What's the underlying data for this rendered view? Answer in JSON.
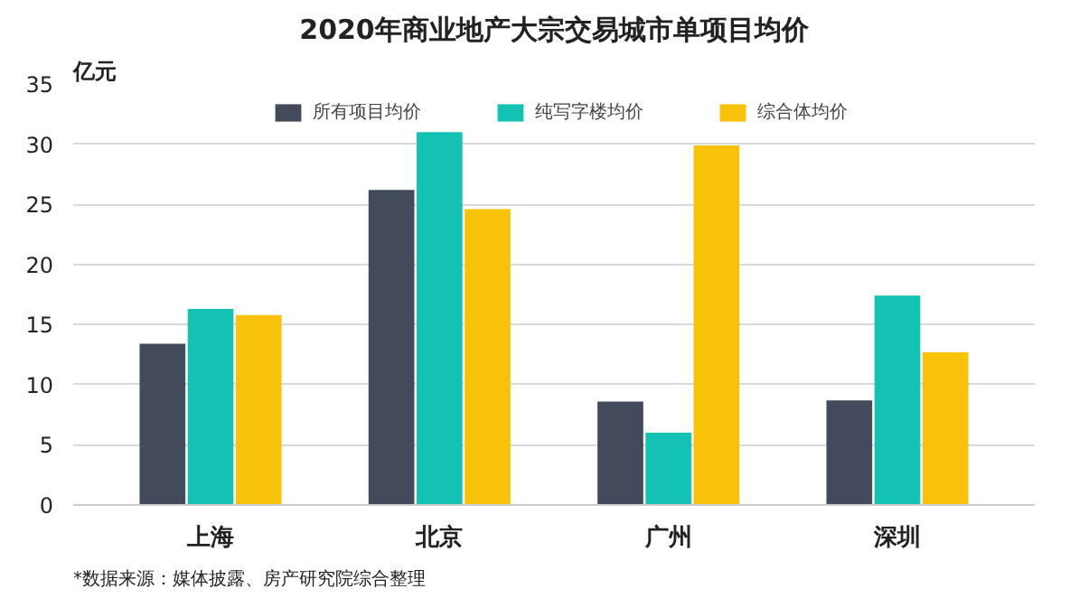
{
  "chart_data": {
    "type": "bar",
    "title": "2020年商业地产大宗交易城市单项目均价",
    "ylabel": "亿元",
    "categories": [
      "上海",
      "北京",
      "广州",
      "深圳"
    ],
    "series": [
      {
        "name": "所有项目均价",
        "color": "#434a5c",
        "values": [
          13.4,
          26.2,
          8.6,
          8.7
        ]
      },
      {
        "name": "纯写字楼均价",
        "color": "#14c2b4",
        "values": [
          16.3,
          31.0,
          6.0,
          17.4
        ]
      },
      {
        "name": "综合体均价",
        "color": "#f9c20a",
        "values": [
          15.8,
          24.6,
          29.9,
          12.7
        ]
      }
    ],
    "ylim": [
      0,
      35
    ],
    "yticks": [
      0,
      5,
      10,
      15,
      20,
      25,
      30,
      35
    ],
    "grid": "y",
    "legend": "top",
    "annotations": [
      "*数据来源：媒体披露、房产研究院综合整理"
    ]
  }
}
